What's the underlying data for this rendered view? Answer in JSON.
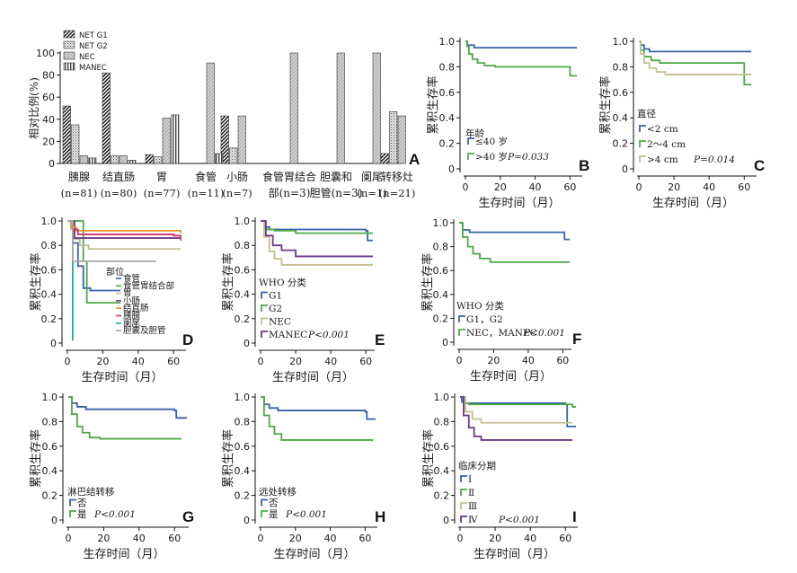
{
  "chart_data": [
    {
      "panel": "A",
      "type": "bar",
      "ylabel": "相对比例(%)",
      "ylim": [
        0,
        100
      ],
      "yticks": [
        0,
        20,
        40,
        60,
        80,
        100
      ],
      "legend": [
        "NET G1",
        "NET G2",
        "NEC",
        "MANEC"
      ],
      "categories": [
        {
          "name": "胰腺",
          "n": "(n=81)"
        },
        {
          "name": "结直肠",
          "n": "(n=80)"
        },
        {
          "name": "胃",
          "n": "(n=77)"
        },
        {
          "name": "食管",
          "n": "(n=11)"
        },
        {
          "name": "小肠",
          "n": "(n=7)"
        },
        {
          "name": "食管胃结合部",
          "n": "(n=3)"
        },
        {
          "name": "胆囊和胆管",
          "n": "(n=3)"
        },
        {
          "name": "阑尾",
          "n": "(n=1)"
        },
        {
          "name": "转移灶",
          "n": "(n=21)"
        }
      ],
      "series": [
        {
          "name": "NET G1",
          "values": [
            52,
            82,
            8,
            0,
            43,
            0,
            0,
            0,
            9
          ]
        },
        {
          "name": "NET G2",
          "values": [
            35,
            7,
            6,
            0,
            14,
            0,
            0,
            0,
            47
          ]
        },
        {
          "name": "NEC",
          "values": [
            7,
            7,
            41,
            91,
            43,
            100,
            100,
            100,
            43
          ]
        },
        {
          "name": "MANEC",
          "values": [
            5,
            3,
            44,
            9,
            0,
            0,
            0,
            0,
            0
          ]
        }
      ]
    },
    {
      "panel": "B",
      "type": "line",
      "xlabel": "生存时间（月）",
      "ylabel": "累积生存率",
      "xticks": [
        0,
        20,
        40,
        60
      ],
      "yticks": [
        0,
        0.2,
        0.4,
        0.6,
        0.8,
        1.0
      ],
      "legend_title": "年龄",
      "p_value": "P=0.033",
      "series": [
        {
          "name": "≤40 岁",
          "color": "#3a62a7",
          "steps": [
            [
              0,
              1
            ],
            [
              1,
              0.97
            ],
            [
              5,
              0.95
            ],
            [
              64,
              0.95
            ]
          ]
        },
        {
          "name": ">40 岁",
          "color": "#4caa46",
          "steps": [
            [
              0,
              1
            ],
            [
              1,
              0.96
            ],
            [
              2,
              0.9
            ],
            [
              4,
              0.86
            ],
            [
              7,
              0.83
            ],
            [
              11,
              0.81
            ],
            [
              17,
              0.8
            ],
            [
              60,
              0.73
            ],
            [
              64,
              0.73
            ]
          ]
        }
      ]
    },
    {
      "panel": "C",
      "type": "line",
      "xlabel": "生存时间（月）",
      "ylabel": "累积生存率",
      "xticks": [
        0,
        20,
        40,
        60
      ],
      "yticks": [
        0,
        0.2,
        0.4,
        0.6,
        0.8,
        1.0
      ],
      "legend_title": "直径",
      "p_value": "P=0.014",
      "series": [
        {
          "name": "<2 cm",
          "color": "#3a62a7",
          "steps": [
            [
              0,
              1
            ],
            [
              1,
              0.97
            ],
            [
              3,
              0.94
            ],
            [
              6,
              0.92
            ],
            [
              64,
              0.92
            ]
          ]
        },
        {
          "name": "2～4 cm",
          "color": "#4caa46",
          "steps": [
            [
              0,
              1
            ],
            [
              1,
              0.93
            ],
            [
              3,
              0.88
            ],
            [
              7,
              0.85
            ],
            [
              12,
              0.83
            ],
            [
              60,
              0.66
            ],
            [
              64,
              0.66
            ]
          ]
        },
        {
          "name": ">4 cm",
          "color": "#c5bf92",
          "steps": [
            [
              0,
              1
            ],
            [
              1,
              0.9
            ],
            [
              3,
              0.83
            ],
            [
              6,
              0.79
            ],
            [
              10,
              0.76
            ],
            [
              15,
              0.74
            ],
            [
              64,
              0.74
            ]
          ]
        }
      ]
    },
    {
      "panel": "D",
      "type": "line",
      "xlabel": "生存时间（月）",
      "ylabel": "累积生存率",
      "xticks": [
        0,
        20,
        40,
        60
      ],
      "yticks": [
        0,
        0.2,
        0.4,
        0.6,
        0.8,
        1.0
      ],
      "legend_title": "部位",
      "series": [
        {
          "name": "食管",
          "color": "#3a62a7",
          "steps": [
            [
              0,
              1
            ],
            [
              3,
              0.82
            ],
            [
              6,
              0.63
            ],
            [
              9,
              0.45
            ],
            [
              13,
              0.43
            ],
            [
              30,
              0.43
            ]
          ]
        },
        {
          "name": "食管胃结合部",
          "color": "#4caa46",
          "steps": [
            [
              0,
              1
            ],
            [
              5,
              1
            ],
            [
              9,
              0.67
            ],
            [
              11,
              0.33
            ],
            [
              30,
              0.33
            ]
          ]
        },
        {
          "name": "胃",
          "color": "#c5bf92",
          "steps": [
            [
              0,
              1
            ],
            [
              2,
              0.93
            ],
            [
              4,
              0.85
            ],
            [
              7,
              0.8
            ],
            [
              12,
              0.77
            ],
            [
              64,
              0.77
            ]
          ]
        },
        {
          "name": "小肠",
          "color": "#6b3a86",
          "steps": [
            [
              0,
              1
            ],
            [
              4,
              0.86
            ],
            [
              64,
              0.86
            ]
          ]
        },
        {
          "name": "结直肠",
          "color": "#e8962f",
          "steps": [
            [
              0,
              1
            ],
            [
              2,
              0.95
            ],
            [
              5,
              0.92
            ],
            [
              60,
              0.92
            ],
            [
              64,
              0.9
            ]
          ]
        },
        {
          "name": "胰腺",
          "color": "#d6336c",
          "steps": [
            [
              0,
              1
            ],
            [
              3,
              0.93
            ],
            [
              6,
              0.89
            ],
            [
              60,
              0.88
            ],
            [
              64,
              0.84
            ]
          ]
        },
        {
          "name": "阑尾",
          "color": "#2aa5a0",
          "steps": [
            [
              0,
              1
            ],
            [
              2,
              1
            ],
            [
              3,
              0.02
            ]
          ]
        },
        {
          "name": "胆囊及胆管",
          "color": "#a8a8a8",
          "steps": [
            [
              0,
              1
            ],
            [
              3,
              0.67
            ],
            [
              50,
              0.67
            ]
          ]
        }
      ]
    },
    {
      "panel": "E",
      "type": "line",
      "xlabel": "生存时间（月）",
      "ylabel": "累积生存率",
      "xticks": [
        0,
        20,
        40,
        60
      ],
      "yticks": [
        0,
        0.2,
        0.4,
        0.6,
        0.8,
        1.0
      ],
      "legend_title": "WHO 分类",
      "p_value": "P<0.001",
      "series": [
        {
          "name": "G1",
          "color": "#3a62a7",
          "steps": [
            [
              0,
              1
            ],
            [
              2,
              0.95
            ],
            [
              5,
              0.93
            ],
            [
              60,
              0.92
            ],
            [
              61,
              0.84
            ],
            [
              64,
              0.84
            ]
          ]
        },
        {
          "name": "G2",
          "color": "#4caa46",
          "steps": [
            [
              0,
              1
            ],
            [
              3,
              0.93
            ],
            [
              8,
              0.92
            ],
            [
              20,
              0.9
            ],
            [
              64,
              0.9
            ]
          ]
        },
        {
          "name": "NEC",
          "color": "#c5bf92",
          "steps": [
            [
              0,
              1
            ],
            [
              2,
              0.87
            ],
            [
              5,
              0.75
            ],
            [
              8,
              0.69
            ],
            [
              12,
              0.64
            ],
            [
              64,
              0.64
            ]
          ]
        },
        {
          "name": "MANEC",
          "color": "#6b3a86",
          "steps": [
            [
              0,
              1
            ],
            [
              3,
              0.88
            ],
            [
              7,
              0.8
            ],
            [
              12,
              0.76
            ],
            [
              20,
              0.71
            ],
            [
              64,
              0.71
            ]
          ]
        }
      ]
    },
    {
      "panel": "F",
      "type": "line",
      "xlabel": "生存时间（月）",
      "ylabel": "累积生存率",
      "xticks": [
        0,
        20,
        40,
        60
      ],
      "yticks": [
        0,
        0.2,
        0.4,
        0.6,
        0.8,
        1.0
      ],
      "legend_title": "WHO 分类",
      "p_value": "P<0.001",
      "series": [
        {
          "name": "G1，G2",
          "color": "#3a62a7",
          "steps": [
            [
              0,
              1
            ],
            [
              2,
              0.94
            ],
            [
              6,
              0.92
            ],
            [
              60,
              0.92
            ],
            [
              61,
              0.86
            ],
            [
              64,
              0.86
            ]
          ]
        },
        {
          "name": "NEC，MANEC",
          "color": "#4caa46",
          "steps": [
            [
              0,
              1
            ],
            [
              2,
              0.88
            ],
            [
              5,
              0.8
            ],
            [
              8,
              0.74
            ],
            [
              12,
              0.7
            ],
            [
              18,
              0.67
            ],
            [
              64,
              0.67
            ]
          ]
        }
      ]
    },
    {
      "panel": "G",
      "type": "line",
      "xlabel": "生存时间（月）",
      "ylabel": "累积生存率",
      "xticks": [
        0,
        20,
        40,
        60
      ],
      "yticks": [
        0,
        0.2,
        0.4,
        0.6,
        0.8,
        1.0
      ],
      "legend_title": "淋巴结转移",
      "p_value": "P<0.001",
      "series": [
        {
          "name": "否",
          "color": "#3a62a7",
          "steps": [
            [
              0,
              1
            ],
            [
              2,
              0.95
            ],
            [
              5,
              0.92
            ],
            [
              10,
              0.9
            ],
            [
              60,
              0.89
            ],
            [
              61,
              0.83
            ],
            [
              67,
              0.83
            ]
          ]
        },
        {
          "name": "是",
          "color": "#4caa46",
          "steps": [
            [
              0,
              1
            ],
            [
              2,
              0.86
            ],
            [
              5,
              0.76
            ],
            [
              8,
              0.71
            ],
            [
              12,
              0.67
            ],
            [
              18,
              0.66
            ],
            [
              64,
              0.66
            ]
          ]
        }
      ]
    },
    {
      "panel": "H",
      "type": "line",
      "xlabel": "生存时间（月）",
      "ylabel": "累积生存率",
      "xticks": [
        0,
        20,
        40,
        60
      ],
      "yticks": [
        0,
        0.2,
        0.4,
        0.6,
        0.8,
        1.0
      ],
      "legend_title": "远处转移",
      "p_value": "P<0.001",
      "series": [
        {
          "name": "否",
          "color": "#3a62a7",
          "steps": [
            [
              0,
              1
            ],
            [
              2,
              0.94
            ],
            [
              5,
              0.91
            ],
            [
              10,
              0.89
            ],
            [
              60,
              0.88
            ],
            [
              61,
              0.82
            ],
            [
              66,
              0.82
            ]
          ]
        },
        {
          "name": "是",
          "color": "#4caa46",
          "steps": [
            [
              0,
              1
            ],
            [
              2,
              0.85
            ],
            [
              5,
              0.76
            ],
            [
              8,
              0.7
            ],
            [
              12,
              0.65
            ],
            [
              64,
              0.64
            ]
          ]
        }
      ]
    },
    {
      "panel": "I",
      "type": "line",
      "xlabel": "生存时间（月）",
      "ylabel": "累积生存率",
      "xticks": [
        0,
        20,
        40,
        60
      ],
      "yticks": [
        0,
        0.2,
        0.4,
        0.6,
        0.8,
        1.0
      ],
      "legend_title": "临床分期",
      "p_value": "P<0.001",
      "series": [
        {
          "name": "Ⅰ",
          "color": "#3a62a7",
          "steps": [
            [
              0,
              1
            ],
            [
              1,
              0.96
            ],
            [
              3,
              0.95
            ],
            [
              60,
              0.94
            ],
            [
              61,
              0.76
            ],
            [
              66,
              0.76
            ]
          ]
        },
        {
          "name": "Ⅱ",
          "color": "#4caa46",
          "steps": [
            [
              0,
              1
            ],
            [
              2,
              0.95
            ],
            [
              5,
              0.94
            ],
            [
              64,
              0.92
            ],
            [
              66,
              0.92
            ]
          ]
        },
        {
          "name": "Ⅲ",
          "color": "#c5bf92",
          "steps": [
            [
              0,
              1
            ],
            [
              3,
              0.88
            ],
            [
              7,
              0.82
            ],
            [
              12,
              0.79
            ],
            [
              64,
              0.79
            ]
          ]
        },
        {
          "name": "Ⅳ",
          "color": "#6b3a86",
          "steps": [
            [
              0,
              1
            ],
            [
              2,
              0.85
            ],
            [
              5,
              0.75
            ],
            [
              8,
              0.68
            ],
            [
              12,
              0.65
            ],
            [
              64,
              0.65
            ]
          ]
        }
      ]
    }
  ]
}
